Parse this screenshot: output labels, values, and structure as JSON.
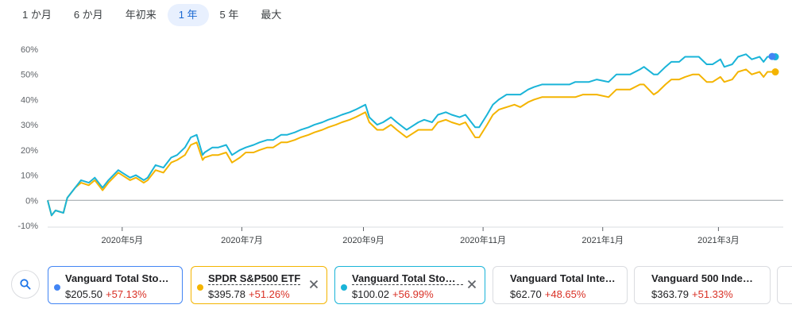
{
  "range_tabs": [
    "1 か月",
    "6 か月",
    "年初来",
    "1 年",
    "5 年",
    "最大"
  ],
  "active_tab": 3,
  "chart_data": {
    "type": "line",
    "y_ticks": [
      "60%",
      "50%",
      "40%",
      "30%",
      "20%",
      "10%",
      "0%",
      "-10%"
    ],
    "ylim": [
      -10,
      60
    ],
    "x_ticks": [
      "2020年5月",
      "2020年7月",
      "2020年9月",
      "2020年11月",
      "2021年1月",
      "2021年3月"
    ],
    "x_tick_dates": [
      "2020-05-01",
      "2020-07-01",
      "2020-09-01",
      "2020-11-01",
      "2021-01-01",
      "2021-03-01"
    ],
    "series": [
      {
        "color": "#1ab4d8",
        "points": [
          [
            "2020-03-24",
            0
          ],
          [
            "2020-03-26",
            -6
          ],
          [
            "2020-03-28",
            -4
          ],
          [
            "2020-04-01",
            -5
          ],
          [
            "2020-04-03",
            1
          ],
          [
            "2020-04-07",
            5
          ],
          [
            "2020-04-10",
            8
          ],
          [
            "2020-04-14",
            7
          ],
          [
            "2020-04-17",
            9
          ],
          [
            "2020-04-21",
            5
          ],
          [
            "2020-04-24",
            8
          ],
          [
            "2020-04-29",
            12
          ],
          [
            "2020-05-01",
            11
          ],
          [
            "2020-05-05",
            9
          ],
          [
            "2020-05-08",
            10
          ],
          [
            "2020-05-12",
            8
          ],
          [
            "2020-05-14",
            9
          ],
          [
            "2020-05-18",
            14
          ],
          [
            "2020-05-22",
            13
          ],
          [
            "2020-05-26",
            17
          ],
          [
            "2020-05-29",
            18
          ],
          [
            "2020-06-02",
            21
          ],
          [
            "2020-06-05",
            25
          ],
          [
            "2020-06-08",
            26
          ],
          [
            "2020-06-11",
            18
          ],
          [
            "2020-06-12",
            19
          ],
          [
            "2020-06-16",
            21
          ],
          [
            "2020-06-19",
            21
          ],
          [
            "2020-06-23",
            22
          ],
          [
            "2020-06-26",
            18
          ],
          [
            "2020-06-30",
            20
          ],
          [
            "2020-07-03",
            21
          ],
          [
            "2020-07-07",
            22
          ],
          [
            "2020-07-10",
            23
          ],
          [
            "2020-07-14",
            24
          ],
          [
            "2020-07-17",
            24
          ],
          [
            "2020-07-21",
            26
          ],
          [
            "2020-07-24",
            26
          ],
          [
            "2020-07-28",
            27
          ],
          [
            "2020-07-31",
            28
          ],
          [
            "2020-08-04",
            29
          ],
          [
            "2020-08-07",
            30
          ],
          [
            "2020-08-11",
            31
          ],
          [
            "2020-08-14",
            32
          ],
          [
            "2020-08-18",
            33
          ],
          [
            "2020-08-21",
            34
          ],
          [
            "2020-08-25",
            35
          ],
          [
            "2020-08-28",
            36
          ],
          [
            "2020-09-02",
            38
          ],
          [
            "2020-09-04",
            33
          ],
          [
            "2020-09-08",
            30
          ],
          [
            "2020-09-11",
            31
          ],
          [
            "2020-09-15",
            33
          ],
          [
            "2020-09-18",
            31
          ],
          [
            "2020-09-23",
            28
          ],
          [
            "2020-09-25",
            29
          ],
          [
            "2020-09-29",
            31
          ],
          [
            "2020-10-02",
            32
          ],
          [
            "2020-10-06",
            31
          ],
          [
            "2020-10-09",
            34
          ],
          [
            "2020-10-13",
            35
          ],
          [
            "2020-10-16",
            34
          ],
          [
            "2020-10-20",
            33
          ],
          [
            "2020-10-23",
            34
          ],
          [
            "2020-10-28",
            29
          ],
          [
            "2020-10-30",
            29
          ],
          [
            "2020-11-03",
            34
          ],
          [
            "2020-11-06",
            38
          ],
          [
            "2020-11-09",
            40
          ],
          [
            "2020-11-13",
            42
          ],
          [
            "2020-11-17",
            42
          ],
          [
            "2020-11-20",
            42
          ],
          [
            "2020-11-24",
            44
          ],
          [
            "2020-11-27",
            45
          ],
          [
            "2020-12-01",
            46
          ],
          [
            "2020-12-04",
            46
          ],
          [
            "2020-12-08",
            46
          ],
          [
            "2020-12-11",
            46
          ],
          [
            "2020-12-15",
            46
          ],
          [
            "2020-12-18",
            47
          ],
          [
            "2020-12-22",
            47
          ],
          [
            "2020-12-25",
            47
          ],
          [
            "2020-12-29",
            48
          ],
          [
            "2021-01-04",
            47
          ],
          [
            "2021-01-08",
            50
          ],
          [
            "2021-01-12",
            50
          ],
          [
            "2021-01-15",
            50
          ],
          [
            "2021-01-20",
            52
          ],
          [
            "2021-01-22",
            53
          ],
          [
            "2021-01-27",
            50
          ],
          [
            "2021-01-29",
            50
          ],
          [
            "2021-02-02",
            53
          ],
          [
            "2021-02-05",
            55
          ],
          [
            "2021-02-09",
            55
          ],
          [
            "2021-02-12",
            57
          ],
          [
            "2021-02-16",
            57
          ],
          [
            "2021-02-19",
            57
          ],
          [
            "2021-02-23",
            54
          ],
          [
            "2021-02-26",
            54
          ],
          [
            "2021-03-02",
            56
          ],
          [
            "2021-03-04",
            53
          ],
          [
            "2021-03-08",
            54
          ],
          [
            "2021-03-11",
            57
          ],
          [
            "2021-03-15",
            58
          ],
          [
            "2021-03-18",
            56
          ],
          [
            "2021-03-22",
            57
          ],
          [
            "2021-03-24",
            55
          ],
          [
            "2021-03-26",
            57
          ],
          [
            "2021-03-30",
            57
          ]
        ]
      },
      {
        "color": "#f4b400",
        "points": [
          [
            "2020-03-24",
            0
          ],
          [
            "2020-03-26",
            -6
          ],
          [
            "2020-03-28",
            -4
          ],
          [
            "2020-04-01",
            -5
          ],
          [
            "2020-04-03",
            1
          ],
          [
            "2020-04-07",
            5
          ],
          [
            "2020-04-10",
            7
          ],
          [
            "2020-04-14",
            6
          ],
          [
            "2020-04-17",
            8
          ],
          [
            "2020-04-21",
            4
          ],
          [
            "2020-04-24",
            7
          ],
          [
            "2020-04-29",
            11
          ],
          [
            "2020-05-01",
            10
          ],
          [
            "2020-05-05",
            8
          ],
          [
            "2020-05-08",
            9
          ],
          [
            "2020-05-12",
            7
          ],
          [
            "2020-05-14",
            8
          ],
          [
            "2020-05-18",
            12
          ],
          [
            "2020-05-22",
            11
          ],
          [
            "2020-05-26",
            15
          ],
          [
            "2020-05-29",
            16
          ],
          [
            "2020-06-02",
            18
          ],
          [
            "2020-06-05",
            22
          ],
          [
            "2020-06-08",
            23
          ],
          [
            "2020-06-11",
            16
          ],
          [
            "2020-06-12",
            17
          ],
          [
            "2020-06-16",
            18
          ],
          [
            "2020-06-19",
            18
          ],
          [
            "2020-06-23",
            19
          ],
          [
            "2020-06-26",
            15
          ],
          [
            "2020-06-30",
            17
          ],
          [
            "2020-07-03",
            19
          ],
          [
            "2020-07-07",
            19
          ],
          [
            "2020-07-10",
            20
          ],
          [
            "2020-07-14",
            21
          ],
          [
            "2020-07-17",
            21
          ],
          [
            "2020-07-21",
            23
          ],
          [
            "2020-07-24",
            23
          ],
          [
            "2020-07-28",
            24
          ],
          [
            "2020-07-31",
            25
          ],
          [
            "2020-08-04",
            26
          ],
          [
            "2020-08-07",
            27
          ],
          [
            "2020-08-11",
            28
          ],
          [
            "2020-08-14",
            29
          ],
          [
            "2020-08-18",
            30
          ],
          [
            "2020-08-21",
            31
          ],
          [
            "2020-08-25",
            32
          ],
          [
            "2020-08-28",
            33
          ],
          [
            "2020-09-02",
            35
          ],
          [
            "2020-09-04",
            31
          ],
          [
            "2020-09-08",
            28
          ],
          [
            "2020-09-11",
            28
          ],
          [
            "2020-09-15",
            30
          ],
          [
            "2020-09-18",
            28
          ],
          [
            "2020-09-23",
            25
          ],
          [
            "2020-09-25",
            26
          ],
          [
            "2020-09-29",
            28
          ],
          [
            "2020-10-02",
            28
          ],
          [
            "2020-10-06",
            28
          ],
          [
            "2020-10-09",
            31
          ],
          [
            "2020-10-13",
            32
          ],
          [
            "2020-10-16",
            31
          ],
          [
            "2020-10-20",
            30
          ],
          [
            "2020-10-23",
            31
          ],
          [
            "2020-10-28",
            25
          ],
          [
            "2020-10-30",
            25
          ],
          [
            "2020-11-03",
            30
          ],
          [
            "2020-11-06",
            34
          ],
          [
            "2020-11-09",
            36
          ],
          [
            "2020-11-13",
            37
          ],
          [
            "2020-11-17",
            38
          ],
          [
            "2020-11-20",
            37
          ],
          [
            "2020-11-24",
            39
          ],
          [
            "2020-11-27",
            40
          ],
          [
            "2020-12-01",
            41
          ],
          [
            "2020-12-04",
            41
          ],
          [
            "2020-12-08",
            41
          ],
          [
            "2020-12-11",
            41
          ],
          [
            "2020-12-15",
            41
          ],
          [
            "2020-12-18",
            41
          ],
          [
            "2020-12-22",
            42
          ],
          [
            "2020-12-25",
            42
          ],
          [
            "2020-12-29",
            42
          ],
          [
            "2021-01-04",
            41
          ],
          [
            "2021-01-08",
            44
          ],
          [
            "2021-01-12",
            44
          ],
          [
            "2021-01-15",
            44
          ],
          [
            "2021-01-20",
            46
          ],
          [
            "2021-01-22",
            46
          ],
          [
            "2021-01-27",
            42
          ],
          [
            "2021-01-29",
            43
          ],
          [
            "2021-02-02",
            46
          ],
          [
            "2021-02-05",
            48
          ],
          [
            "2021-02-09",
            48
          ],
          [
            "2021-02-12",
            49
          ],
          [
            "2021-02-16",
            50
          ],
          [
            "2021-02-19",
            50
          ],
          [
            "2021-02-23",
            47
          ],
          [
            "2021-02-26",
            47
          ],
          [
            "2021-03-02",
            49
          ],
          [
            "2021-03-04",
            47
          ],
          [
            "2021-03-08",
            48
          ],
          [
            "2021-03-11",
            51
          ],
          [
            "2021-03-15",
            52
          ],
          [
            "2021-03-18",
            50
          ],
          [
            "2021-03-22",
            51
          ],
          [
            "2021-03-24",
            49
          ],
          [
            "2021-03-26",
            51
          ],
          [
            "2021-03-30",
            51
          ]
        ]
      },
      {
        "color": "#4285f4",
        "points": [
          [
            "2021-03-29",
            57.13
          ],
          [
            "2021-03-30",
            57.13
          ]
        ]
      }
    ]
  },
  "cards": [
    {
      "name": "Vanguard Total Sto…",
      "price": "$205.50",
      "change": "+57.13%",
      "dot": "#4285f4",
      "border": "#4285f4",
      "closable": false,
      "dashed": false
    },
    {
      "name": "SPDR S&P500 ETF",
      "price": "$395.78",
      "change": "+51.26%",
      "dot": "#f4b400",
      "border": "#f4b400",
      "closable": true,
      "dashed": true
    },
    {
      "name": "Vanguard Total Sto…",
      "price": "$100.02",
      "change": "+56.99%",
      "dot": "#1ab4d8",
      "border": "#1ab4d8",
      "closable": true,
      "dashed": true
    },
    {
      "name": "Vanguard Total Inte…",
      "price": "$62.70",
      "change": "+48.65%",
      "dot": "",
      "border": "#dadce0",
      "closable": false,
      "dashed": false
    },
    {
      "name": "Vanguard 500 Inde…",
      "price": "$363.79",
      "change": "+51.33%",
      "dot": "",
      "border": "#dadce0",
      "closable": false,
      "dashed": false
    }
  ]
}
